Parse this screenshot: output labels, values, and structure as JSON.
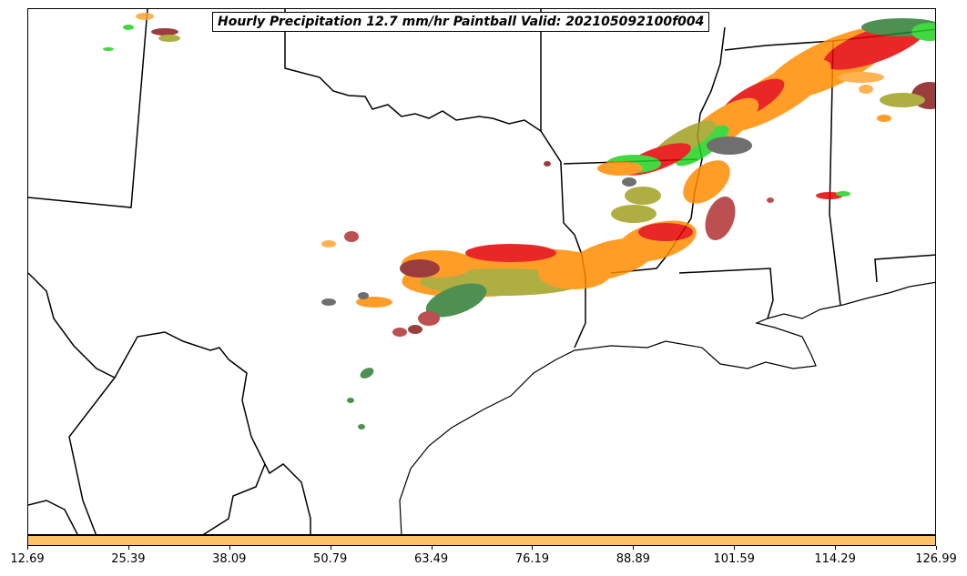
{
  "title": "Hourly Precipitation 12.7 mm/hr Paintball Valid: 202105092100f004",
  "colorbar": {
    "color": "#ffc266",
    "ticks": [
      "12.69",
      "25.39",
      "38.09",
      "50.79",
      "63.49",
      "76.19",
      "88.89",
      "101.59",
      "114.29",
      "126.99"
    ]
  },
  "member_colors": [
    "#ff8c00",
    "#e60000",
    "#1fd11f",
    "#2e7d32",
    "#a0a020",
    "#8b1a1a",
    "#555555",
    "#ffa533",
    "#b03030"
  ]
}
